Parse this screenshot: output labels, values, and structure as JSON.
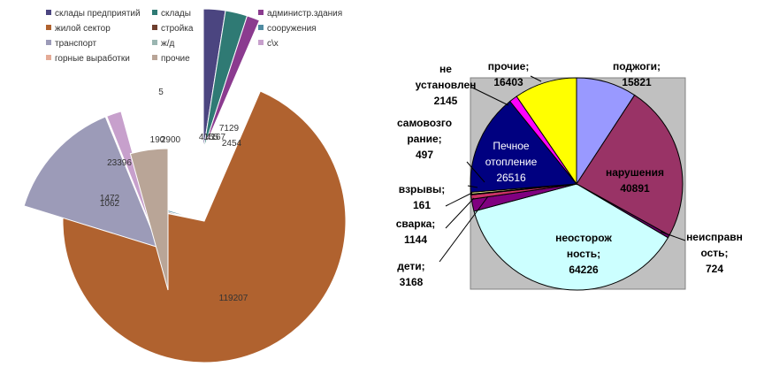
{
  "chart_data": [
    {
      "type": "pie",
      "title": "",
      "legend_position": "top",
      "slices": [
        {
          "label": "склады предприятий",
          "value": 4155,
          "value_label": "4155",
          "color": "#4b4580"
        },
        {
          "label": "склады",
          "value": 4167,
          "value_label": "4167",
          "color": "#2f7a74"
        },
        {
          "label": "администр.здания",
          "value": 2454,
          "value_label": "2454",
          "color": "#8b3b8f"
        },
        {
          "label": "жилой сектор",
          "value": 119207,
          "value_label": "119207",
          "color": "#b0622f"
        },
        {
          "label": "стройка",
          "value": 1062,
          "value_label": "1062",
          "color": "#6e3f2e"
        },
        {
          "label": "сооружения",
          "value": 1472,
          "value_label": "1472",
          "color": "#4f8ba1"
        },
        {
          "label": "транспорт",
          "value": 23396,
          "value_label": "23396",
          "color": "#9c9bb8"
        },
        {
          "label": "ж/д",
          "value": 190,
          "value_label": "190",
          "color": "#9ab5b1"
        },
        {
          "label": "с\\х",
          "value": 2900,
          "value_label": "2900",
          "color": "#c7a0cc"
        },
        {
          "label": "горные выработки",
          "value": 5,
          "value_label": "5",
          "color": "#e5ab97"
        },
        {
          "label": "прочие",
          "value": 7129,
          "value_label": "7129",
          "color": "#b9a597"
        }
      ]
    },
    {
      "type": "pie",
      "title": "",
      "legend_position": "none",
      "slices": [
        {
          "label": "поджоги;",
          "value": 15821,
          "value_label": "15821",
          "color": "#9999ff"
        },
        {
          "label": "нарушения",
          "value": 40891,
          "value_label": "40891",
          "color": "#993366"
        },
        {
          "label": "неисправность;",
          "value": 724,
          "value_label": "724",
          "color": "#660066"
        },
        {
          "label": "неосторожность;",
          "value": 64226,
          "value_label": "64226",
          "color": "#ccffff"
        },
        {
          "label": "дети;",
          "value": 3168,
          "value_label": "3168",
          "color": "#800080"
        },
        {
          "label": "сварка;",
          "value": 1144,
          "value_label": "1144",
          "color": "#cc3366"
        },
        {
          "label": "взрывы;",
          "value": 161,
          "value_label": "161",
          "color": "#ff99cc"
        },
        {
          "label": "самовозгорание;",
          "value": 497,
          "value_label": "497",
          "color": "#ffff99"
        },
        {
          "label": "Печное отопление",
          "value": 26516,
          "value_label": "26516",
          "color": "#000080"
        },
        {
          "label": "не установлен",
          "value": 2145,
          "value_label": "2145",
          "color": "#ff00ff"
        },
        {
          "label": "прочие;",
          "value": 16403,
          "value_label": "16403",
          "color": "#ffff00"
        }
      ],
      "plot_background": "#c0c0c0"
    }
  ],
  "left_pie_labels": [
    {
      "text": "4155"
    },
    {
      "text": "4167"
    },
    {
      "text": "2454"
    },
    {
      "text": "119207"
    },
    {
      "text": "1062"
    },
    {
      "text": "1472"
    },
    {
      "text": "23396"
    },
    {
      "text": "190"
    },
    {
      "text": "2900"
    },
    {
      "text": "5"
    },
    {
      "text": "7129"
    }
  ],
  "right_pie_labels": {
    "podzhogi": [
      "поджоги;",
      "15821"
    ],
    "prochie": [
      "прочие;",
      "16403"
    ],
    "ne_ustanovlen": [
      "не",
      "установлен",
      "2145"
    ],
    "samovozgoranie": [
      "самовозго",
      "рание;",
      "497"
    ],
    "pechnoe": [
      "Печное",
      "отопление",
      "26516"
    ],
    "narusheniya": [
      "нарушения",
      "40891"
    ],
    "neispravnost": [
      "неисправн",
      "ость;",
      "724"
    ],
    "neostorozhnost": [
      "неосторож",
      "ность;",
      "64226"
    ],
    "vzryvy": [
      "взрывы;",
      "161"
    ],
    "svarka": [
      "сварка;",
      "1144"
    ],
    "deti": [
      "дети;",
      "3168"
    ]
  }
}
